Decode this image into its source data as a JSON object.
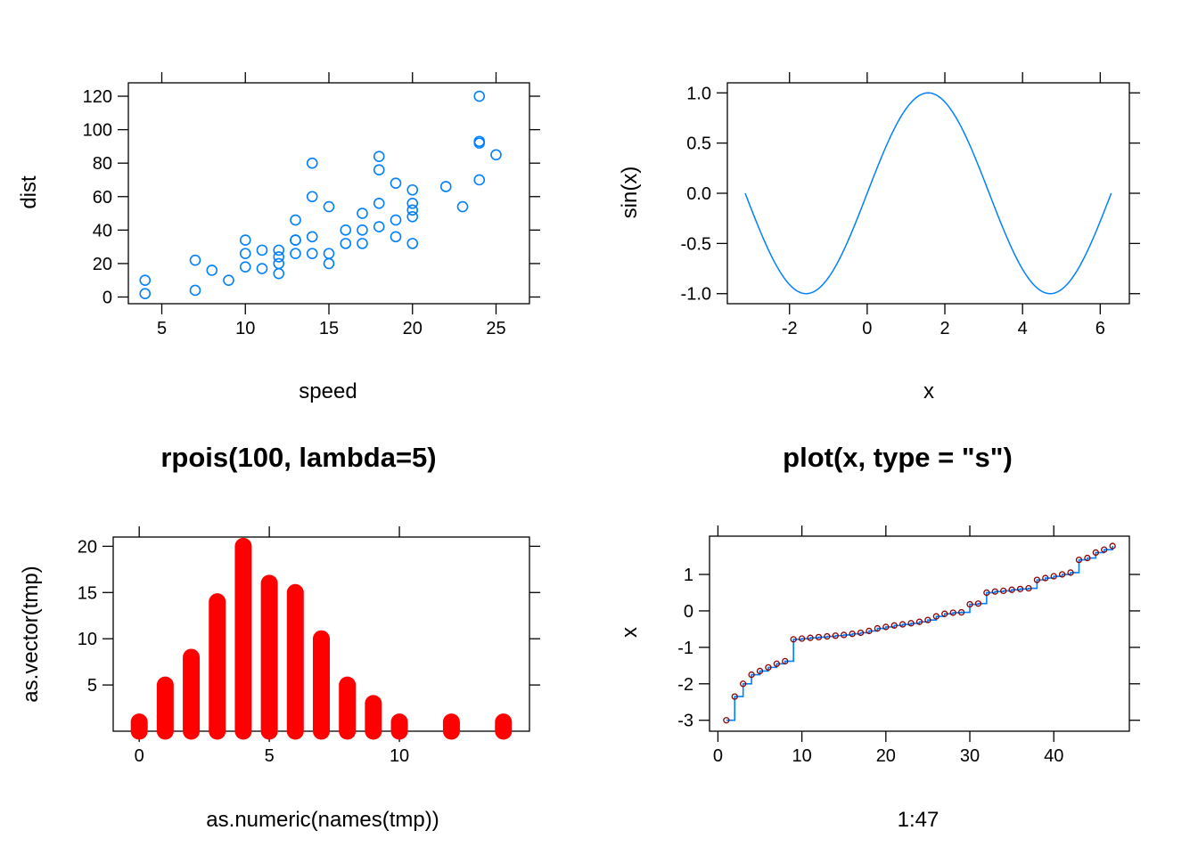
{
  "colors": {
    "points": "#0080ff",
    "line": "#0080ff",
    "bars": "#ff0000",
    "step_points": "#8b0000",
    "axis": "#000000"
  },
  "chart_data": [
    {
      "type": "scatter",
      "title": "",
      "xlabel": "speed",
      "ylabel": "dist",
      "xlim": [
        3,
        27
      ],
      "ylim": [
        -4,
        128
      ],
      "xticks": [
        "5",
        "10",
        "15",
        "20",
        "25"
      ],
      "yticks": [
        "0",
        "20",
        "40",
        "60",
        "80",
        "100",
        "120"
      ],
      "x": [
        4,
        4,
        7,
        7,
        8,
        9,
        10,
        10,
        10,
        11,
        11,
        12,
        12,
        12,
        12,
        13,
        13,
        13,
        13,
        14,
        14,
        14,
        14,
        15,
        15,
        15,
        16,
        16,
        17,
        17,
        17,
        18,
        18,
        18,
        18,
        19,
        19,
        19,
        20,
        20,
        20,
        20,
        20,
        22,
        23,
        24,
        24,
        24,
        24,
        25
      ],
      "y": [
        2,
        10,
        4,
        22,
        16,
        10,
        18,
        26,
        34,
        17,
        28,
        14,
        20,
        24,
        28,
        26,
        34,
        34,
        46,
        26,
        36,
        60,
        80,
        20,
        26,
        54,
        32,
        40,
        32,
        40,
        50,
        42,
        56,
        76,
        84,
        36,
        46,
        68,
        32,
        48,
        52,
        56,
        64,
        66,
        54,
        70,
        92,
        93,
        120,
        85
      ],
      "grid": false
    },
    {
      "type": "line",
      "title": "",
      "xlabel": "x",
      "ylabel": "sin(x)",
      "function": "sin(x)",
      "xrange": [
        -3.14159,
        6.28319
      ],
      "xlim": [
        -3.6,
        6.75
      ],
      "ylim": [
        -1.1,
        1.1
      ],
      "xticks": [
        "-2",
        "0",
        "2",
        "4",
        "6"
      ],
      "yticks": [
        "-1.0",
        "-0.5",
        "0.0",
        "0.5",
        "1.0"
      ],
      "grid": false
    },
    {
      "type": "bar",
      "title": "rpois(100, lambda=5)",
      "xlabel": "as.numeric(names(tmp))",
      "ylabel": "as.vector(tmp)",
      "x": [
        0,
        1,
        2,
        3,
        4,
        5,
        6,
        7,
        8,
        9,
        10,
        12,
        14
      ],
      "values": [
        1,
        5,
        8,
        14,
        20,
        16,
        15,
        10,
        5,
        3,
        1,
        1,
        1
      ],
      "xlim": [
        -1,
        15
      ],
      "ylim": [
        0,
        21
      ],
      "xticks": [
        "0",
        "5",
        "10"
      ],
      "yticks": [
        "5",
        "10",
        "15",
        "20"
      ],
      "grid": false
    },
    {
      "type": "line",
      "title": "plot(x, type = \"s\")",
      "xlabel": "1:47",
      "ylabel": "x",
      "x_from": 1,
      "x_to": 47,
      "values": [
        -3.0,
        -2.35,
        -2.0,
        -1.75,
        -1.65,
        -1.55,
        -1.45,
        -1.38,
        -0.78,
        -0.76,
        -0.74,
        -0.72,
        -0.7,
        -0.68,
        -0.66,
        -0.63,
        -0.6,
        -0.55,
        -0.48,
        -0.44,
        -0.4,
        -0.37,
        -0.34,
        -0.3,
        -0.25,
        -0.15,
        -0.08,
        -0.05,
        -0.04,
        0.18,
        0.2,
        0.5,
        0.53,
        0.55,
        0.58,
        0.6,
        0.62,
        0.85,
        0.9,
        0.95,
        1.0,
        1.05,
        1.4,
        1.45,
        1.6,
        1.68,
        1.78
      ],
      "xlim": [
        -1,
        49
      ],
      "ylim": [
        -3.3,
        2.05
      ],
      "xticks": [
        "0",
        "10",
        "20",
        "30",
        "40"
      ],
      "yticks": [
        "-3",
        "-2",
        "-1",
        "0",
        "1"
      ],
      "grid": false
    }
  ]
}
